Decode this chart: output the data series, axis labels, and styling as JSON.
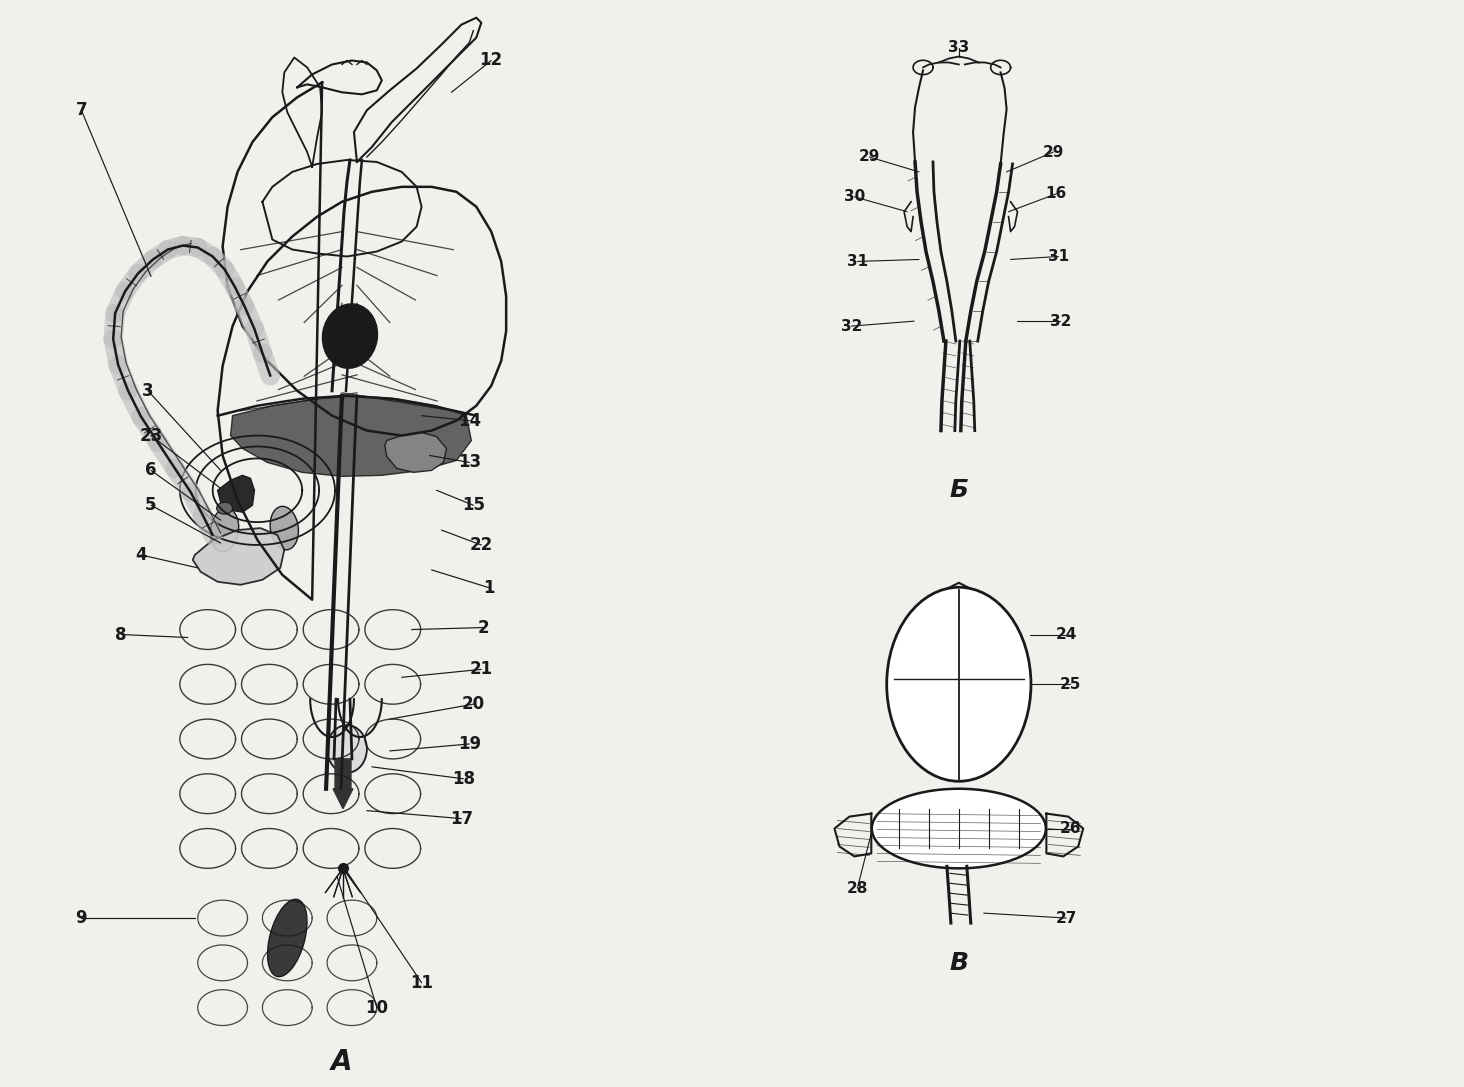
{
  "bg_color": "#f0f0ec",
  "title_A": "A",
  "title_B": "Б",
  "title_V": "B",
  "line_color": "#1a1a1a",
  "label_fontsize": 11,
  "title_fontsize": 16
}
